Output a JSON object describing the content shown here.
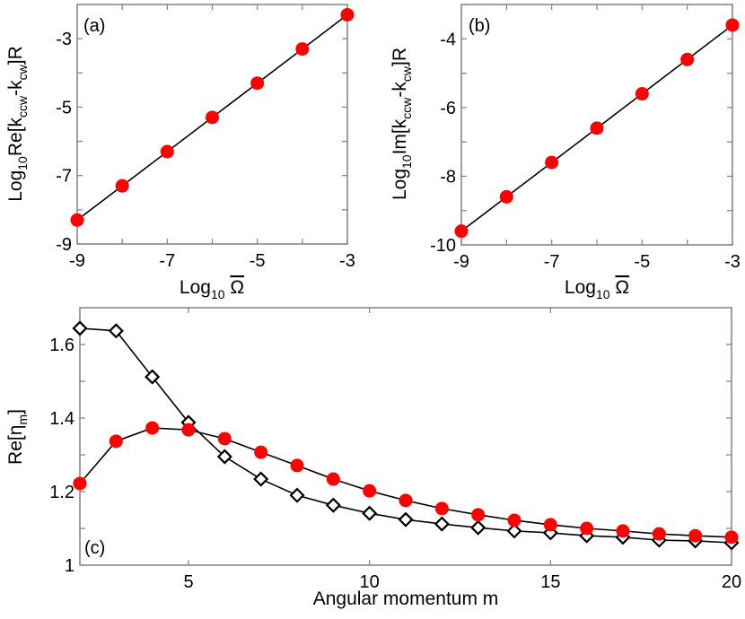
{
  "chart_data": [
    {
      "type": "line",
      "panel_label": "(a)",
      "xlabel_parts": [
        {
          "t": "Log"
        },
        {
          "t": "10",
          "sub": true
        },
        {
          "t": " "
        },
        {
          "t": "Ω",
          "over": true
        }
      ],
      "ylabel_parts": [
        {
          "t": "Log"
        },
        {
          "t": "10",
          "sub": true
        },
        {
          "t": "Re[k"
        },
        {
          "t": "ccw",
          "sub": true
        },
        {
          "t": "-k"
        },
        {
          "t": "cw",
          "sub": true
        },
        {
          "t": "]R"
        }
      ],
      "xlim": [
        -9,
        -3
      ],
      "ylim": [
        -9,
        -2
      ],
      "xticks": [
        -9,
        -8,
        -7,
        -6,
        -5,
        -4,
        -3
      ],
      "xtick_labels": [
        "-9",
        "",
        "-7",
        "",
        "-5",
        "",
        "-3"
      ],
      "yticks": [
        -9,
        -8,
        -7,
        -6,
        -5,
        -4,
        -3
      ],
      "ytick_labels": [
        "-9",
        "",
        "-7",
        "",
        "-5",
        "",
        "-3"
      ],
      "grid": false,
      "series": [
        {
          "marker": "circle",
          "color": "#ff0000",
          "line_color": "#000000",
          "x": [
            -9,
            -8,
            -7,
            -6,
            -5,
            -4,
            -3
          ],
          "y": [
            -8.3,
            -7.3,
            -6.3,
            -5.3,
            -4.3,
            -3.3,
            -2.3
          ]
        }
      ]
    },
    {
      "type": "line",
      "panel_label": "(b)",
      "xlabel_parts": [
        {
          "t": "Log"
        },
        {
          "t": "10",
          "sub": true
        },
        {
          "t": " "
        },
        {
          "t": "Ω",
          "over": true
        }
      ],
      "ylabel_parts": [
        {
          "t": "Log"
        },
        {
          "t": "10",
          "sub": true
        },
        {
          "t": "Im[k"
        },
        {
          "t": "ccw",
          "sub": true
        },
        {
          "t": "-k"
        },
        {
          "t": "cw",
          "sub": true
        },
        {
          "t": "]R"
        }
      ],
      "xlim": [
        -9,
        -3
      ],
      "ylim": [
        -10,
        -3
      ],
      "xticks": [
        -9,
        -8,
        -7,
        -6,
        -5,
        -4,
        -3
      ],
      "xtick_labels": [
        "-9",
        "",
        "-7",
        "",
        "-5",
        "",
        "-3"
      ],
      "yticks": [
        -10,
        -9,
        -8,
        -7,
        -6,
        -5,
        -4
      ],
      "ytick_labels": [
        "-10",
        "",
        "-8",
        "",
        "-6",
        "",
        "-4"
      ],
      "grid": false,
      "series": [
        {
          "marker": "circle",
          "color": "#ff0000",
          "line_color": "#000000",
          "x": [
            -9,
            -8,
            -7,
            -6,
            -5,
            -4,
            -3
          ],
          "y": [
            -9.6,
            -8.6,
            -7.6,
            -6.6,
            -5.6,
            -4.6,
            -3.6
          ]
        }
      ]
    },
    {
      "type": "line",
      "panel_label": "(c)",
      "xlabel_parts": [
        {
          "t": "Angular momentum m"
        }
      ],
      "ylabel_parts": [
        {
          "t": "Re[η"
        },
        {
          "t": "m",
          "sub": true
        },
        {
          "t": "]"
        }
      ],
      "xlim": [
        2,
        20
      ],
      "ylim": [
        1,
        1.7
      ],
      "xticks": [
        5,
        10,
        15,
        20
      ],
      "xtick_labels": [
        "5",
        "10",
        "15",
        "20"
      ],
      "yticks": [
        1,
        1.1,
        1.2,
        1.3,
        1.4,
        1.5,
        1.6
      ],
      "ytick_labels": [
        "1",
        "",
        "1.2",
        "",
        "1.4",
        "",
        "1.6"
      ],
      "grid": false,
      "series": [
        {
          "marker": "diamond",
          "color": "#ffffff",
          "line_color": "#000000",
          "x": [
            2,
            3,
            4,
            5,
            6,
            7,
            8,
            9,
            10,
            11,
            12,
            13,
            14,
            15,
            16,
            17,
            18,
            19,
            20
          ],
          "y": [
            1.644,
            1.637,
            1.512,
            1.388,
            1.295,
            1.234,
            1.19,
            1.163,
            1.141,
            1.124,
            1.112,
            1.102,
            1.093,
            1.088,
            1.08,
            1.076,
            1.068,
            1.066,
            1.061
          ]
        },
        {
          "marker": "circle",
          "color": "#ff0000",
          "line_color": "#000000",
          "x": [
            2,
            3,
            4,
            5,
            6,
            7,
            8,
            9,
            10,
            11,
            12,
            13,
            14,
            15,
            16,
            17,
            18,
            19,
            20
          ],
          "y": [
            1.222,
            1.337,
            1.373,
            1.368,
            1.344,
            1.307,
            1.271,
            1.234,
            1.202,
            1.176,
            1.154,
            1.137,
            1.122,
            1.11,
            1.1,
            1.093,
            1.085,
            1.08,
            1.076
          ]
        }
      ]
    }
  ]
}
